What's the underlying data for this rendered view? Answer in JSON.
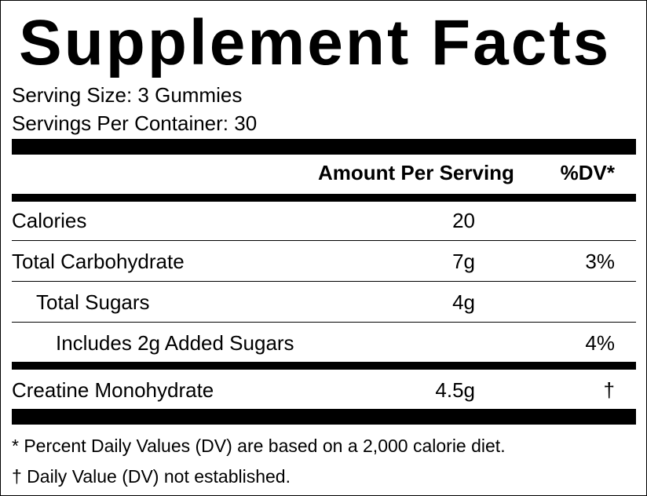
{
  "title": "Supplement Facts",
  "serving": {
    "size": "Serving Size: 3 Gummies",
    "per_container": "Servings Per Container: 30"
  },
  "header": {
    "amount": "Amount Per Serving",
    "dv": "%DV*"
  },
  "rows": [
    {
      "name": "Calories",
      "amount": "20",
      "dv": ""
    },
    {
      "name": "Total Carbohydrate",
      "amount": "7g",
      "dv": "3%"
    },
    {
      "name": "Total Sugars",
      "amount": "4g",
      "dv": ""
    },
    {
      "name": "Includes 2g Added Sugars",
      "amount": "",
      "dv": "4%"
    },
    {
      "name": "Creatine Monohydrate",
      "amount": "4.5g",
      "dv": "†"
    }
  ],
  "footnotes": [
    "* Percent Daily Values (DV) are based on a 2,000 calorie diet.",
    "† Daily Value (DV) not established."
  ]
}
